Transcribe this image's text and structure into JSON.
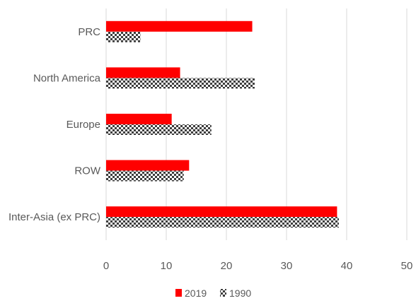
{
  "chart_data": {
    "type": "bar",
    "orientation": "horizontal",
    "categories": [
      "PRC",
      "North America",
      "Europe",
      "ROW",
      "Inter-Asia (ex PRC)"
    ],
    "series": [
      {
        "name": "2019",
        "values": [
          24.3,
          12.3,
          10.9,
          13.8,
          38.4
        ],
        "color": "#ff0000",
        "pattern": "solid"
      },
      {
        "name": "1990",
        "values": [
          5.7,
          24.7,
          17.5,
          12.9,
          38.7
        ],
        "color": "#3d3d3d",
        "pattern": "checkerboard"
      }
    ],
    "xlim": [
      0,
      50
    ],
    "xticks": [
      "0",
      "10",
      "20",
      "30",
      "40",
      "50"
    ],
    "grid": "vertical",
    "legend": "bottom-center"
  }
}
